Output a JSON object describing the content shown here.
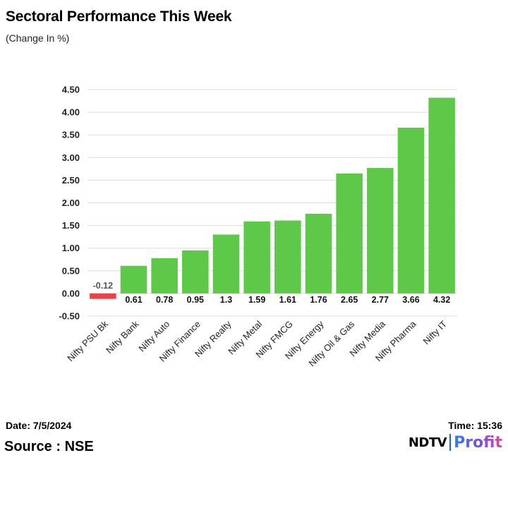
{
  "header": {
    "title": "Sectoral Performance This Week",
    "subtitle": "(Change In %)"
  },
  "footer": {
    "date": "Date: 7/5/2024",
    "time": "Time: 15:36",
    "source": "Source : NSE"
  },
  "logo": {
    "brand": "NDTV",
    "product": "Profit"
  },
  "colors": {
    "positive": "#5ec949",
    "negative": "#ee4147",
    "grid": "#dcdcdc",
    "axis_text": "#222222"
  },
  "chart_data": {
    "type": "bar",
    "title": "Sectoral Performance This Week",
    "subtitle": "(Change In %)",
    "xlabel": "",
    "ylabel": "",
    "categories": [
      "Nifty PSU Bk",
      "Nifty Bank",
      "Nifty Auto",
      "Nifty Finance",
      "Nifty Realty",
      "Nifty Metal",
      "Nifty FMCG",
      "Nifty Energy",
      "Nifty Oil & Gas",
      "Nifty Media",
      "Nifty Pharma",
      "Nifty IT"
    ],
    "values": [
      -0.12,
      0.61,
      0.78,
      0.95,
      1.3,
      1.59,
      1.61,
      1.76,
      2.65,
      2.77,
      3.66,
      4.32
    ],
    "value_labels": [
      "-0.12",
      "0.61",
      "0.78",
      "0.95",
      "1.3",
      "1.59",
      "1.61",
      "1.76",
      "2.65",
      "2.77",
      "3.66",
      "4.32"
    ],
    "ylim": [
      -0.5,
      4.5
    ],
    "yticks": [
      -0.5,
      0,
      0.5,
      1,
      1.5,
      2,
      2.5,
      3,
      3.5,
      4,
      4.5
    ],
    "ytick_labels": [
      "-0.50",
      "0.00",
      "0.50",
      "1.00",
      "1.50",
      "2.00",
      "2.50",
      "3.00",
      "3.50",
      "4.00",
      "4.50"
    ],
    "grid": true,
    "legend": "none"
  }
}
